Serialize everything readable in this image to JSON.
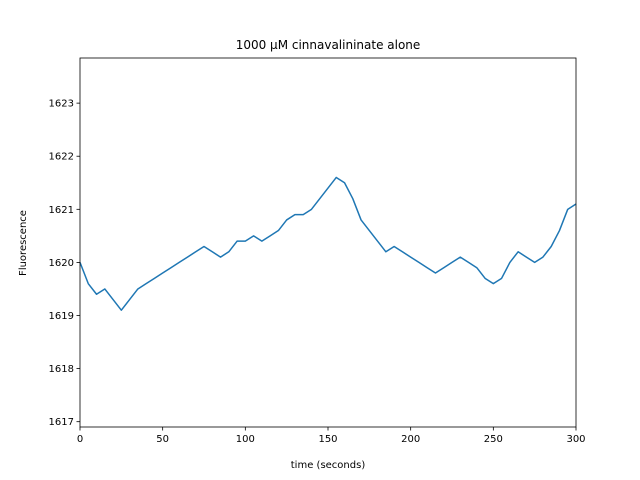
{
  "chart_data": {
    "type": "line",
    "title": "1000 µM cinnavalininate alone",
    "xlabel": "time (seconds)",
    "ylabel": "Fluorescence",
    "xlim": [
      0,
      300
    ],
    "ylim": [
      1616.9,
      1623.85
    ],
    "xticks": [
      0,
      50,
      100,
      150,
      200,
      250,
      300
    ],
    "yticks": [
      1617,
      1618,
      1619,
      1620,
      1621,
      1622,
      1623
    ],
    "grid": false,
    "legend": "none",
    "series": [
      {
        "color": "#1f77b4",
        "x": [
          0,
          5,
          10,
          15,
          20,
          25,
          30,
          35,
          40,
          45,
          50,
          55,
          60,
          65,
          70,
          75,
          80,
          85,
          90,
          95,
          100,
          105,
          110,
          115,
          120,
          125,
          130,
          135,
          140,
          145,
          150,
          155,
          160,
          165,
          170,
          175,
          180,
          185,
          190,
          195,
          200,
          205,
          210,
          215,
          220,
          225,
          230,
          235,
          240,
          245,
          250,
          255,
          260,
          265,
          270,
          275,
          280,
          285,
          290,
          295,
          300
        ],
        "y": [
          1620.0,
          1619.6,
          1619.4,
          1619.5,
          1619.3,
          1619.1,
          1619.3,
          1619.5,
          1619.6,
          1619.7,
          1619.8,
          1619.9,
          1620.0,
          1620.1,
          1620.2,
          1620.3,
          1620.2,
          1620.1,
          1620.2,
          1620.4,
          1620.4,
          1620.5,
          1620.4,
          1620.5,
          1620.6,
          1620.8,
          1620.9,
          1620.9,
          1621.0,
          1621.2,
          1621.4,
          1621.6,
          1621.5,
          1621.2,
          1620.8,
          1620.6,
          1620.4,
          1620.2,
          1620.3,
          1620.2,
          1620.1,
          1620.0,
          1619.9,
          1619.8,
          1619.9,
          1620.0,
          1620.1,
          1620.0,
          1619.9,
          1619.7,
          1619.6,
          1619.7,
          1620.0,
          1620.2,
          1620.1,
          1620.0,
          1620.1,
          1620.3,
          1620.6,
          1621.0,
          1621.1
        ]
      }
    ]
  }
}
